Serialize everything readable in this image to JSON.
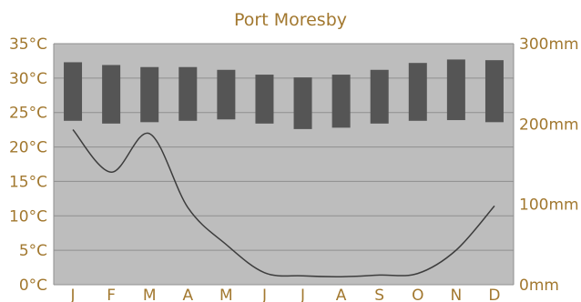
{
  "chart_data": {
    "type": "bar",
    "title": "Port Moresby",
    "categories": [
      "J",
      "F",
      "M",
      "A",
      "M",
      "J",
      "J",
      "A",
      "S",
      "O",
      "N",
      "D"
    ],
    "series": [
      {
        "kind": "temperature-range-bar",
        "axis": "left",
        "low": [
          23.8,
          23.4,
          23.6,
          23.8,
          24.0,
          23.4,
          22.6,
          22.8,
          23.4,
          23.8,
          23.9,
          23.6
        ],
        "high": [
          32.3,
          31.9,
          31.6,
          31.6,
          31.2,
          30.5,
          30.1,
          30.5,
          31.2,
          32.2,
          32.7,
          32.6
        ]
      },
      {
        "kind": "precipitation-line",
        "axis": "right",
        "values": [
          193,
          140,
          188,
          96,
          50,
          15,
          11,
          10,
          12,
          14,
          43,
          98
        ]
      }
    ],
    "yleft": {
      "ticks": [
        "0°C",
        "5°C",
        "10°C",
        "15°C",
        "20°C",
        "25°C",
        "30°C",
        "35°C"
      ],
      "range": [
        0,
        35
      ]
    },
    "yright": {
      "ticks": [
        "0mm",
        "100mm",
        "200mm",
        "300mm"
      ],
      "range": [
        0,
        300
      ]
    },
    "grid": true,
    "colors": {
      "plot_bg": "#bdbdbd",
      "bar": "#555555",
      "line": "#3d3d3d",
      "grid": "#8f8f8f",
      "text": "#a2782f"
    }
  }
}
